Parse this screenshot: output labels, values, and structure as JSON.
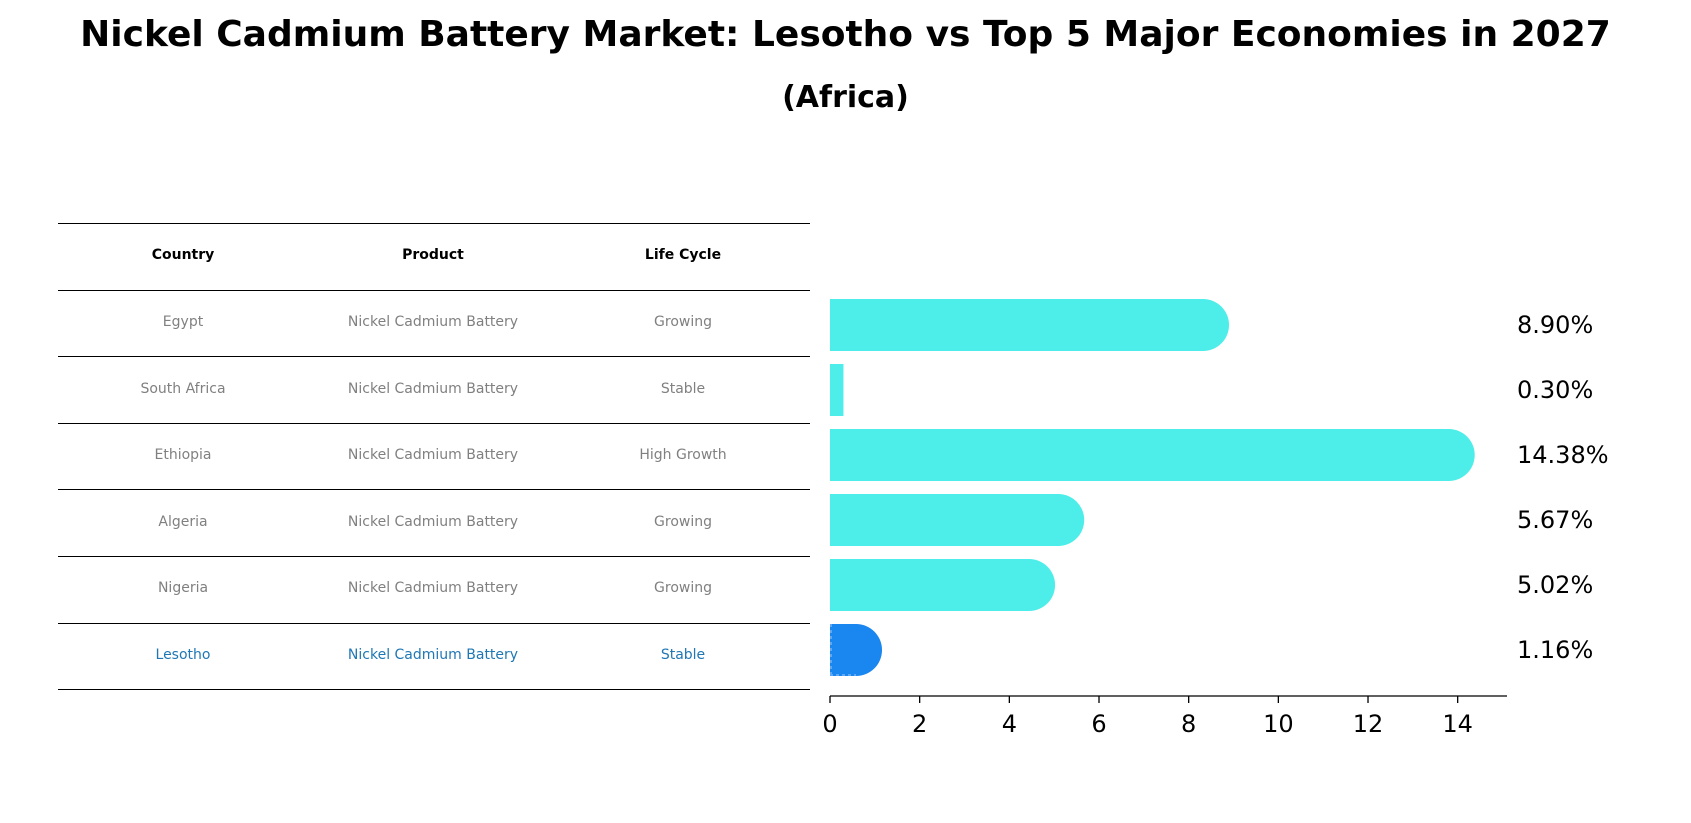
{
  "title": "Nickel Cadmium Battery Market: Lesotho vs Top 5 Major Economies in 2027",
  "subtitle": "(Africa)",
  "table": {
    "headers": [
      "Country",
      "Product",
      "Life Cycle"
    ],
    "rows": [
      {
        "country": "Egypt",
        "product": "Nickel Cadmium Battery",
        "life_cycle": "Growing",
        "highlight": false
      },
      {
        "country": "South Africa",
        "product": "Nickel Cadmium Battery",
        "life_cycle": "Stable",
        "highlight": false
      },
      {
        "country": "Ethiopia",
        "product": "Nickel Cadmium Battery",
        "life_cycle": "High Growth",
        "highlight": false
      },
      {
        "country": "Algeria",
        "product": "Nickel Cadmium Battery",
        "life_cycle": "Growing",
        "highlight": false
      },
      {
        "country": "Nigeria",
        "product": "Nickel Cadmium Battery",
        "life_cycle": "Growing",
        "highlight": false
      },
      {
        "country": "Lesotho",
        "product": "Nickel Cadmium Battery",
        "life_cycle": "Stable",
        "highlight": true
      }
    ]
  },
  "chart_data": {
    "type": "bar",
    "orientation": "horizontal",
    "categories": [
      "Egypt",
      "South Africa",
      "Ethiopia",
      "Algeria",
      "Nigeria",
      "Lesotho"
    ],
    "values": [
      8.9,
      0.3,
      14.38,
      5.67,
      5.02,
      1.16
    ],
    "value_labels": [
      "8.90%",
      "0.30%",
      "14.38%",
      "5.67%",
      "5.02%",
      "1.16%"
    ],
    "xlim": [
      0,
      15.1
    ],
    "xticks": [
      0,
      2,
      4,
      6,
      8,
      10,
      12,
      14
    ],
    "grid": false,
    "colors": {
      "default": "#4deeea",
      "highlight": "#1a86f0",
      "table_highlight_text": "#1f77b4",
      "table_text": "#808080"
    }
  }
}
